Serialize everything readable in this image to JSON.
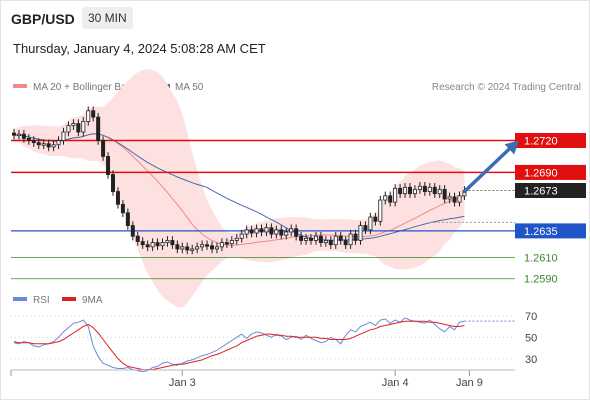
{
  "header": {
    "symbol": "GBP/USD",
    "timeframe": "30 MIN",
    "datetime": "Thursday, January 4, 2024 5:08:28 AM CET"
  },
  "colors": {
    "resistance": "#e01010",
    "support": "#1f55c8",
    "minor_support": "#3a8a2a",
    "bollinger_fill": "#fde0e0",
    "ma20": "#f08a8a",
    "ma50": "#4a6aa8",
    "candle_up": "#ffffff",
    "candle_down": "#222222",
    "arrow": "#3a6db4",
    "rsi": "#6a8ad8",
    "rsi_ma": "#e02020",
    "current_price_bg": "#222222"
  },
  "chart_data": [
    {
      "type": "candlestick",
      "legend": [
        {
          "label": "MA 20 + Bollinger Bands",
          "color": "#f08a8a"
        },
        {
          "label": "MA 50",
          "color": "#4a6aa8"
        }
      ],
      "credit": "Research © 2024 Trading Central",
      "x_tick_labels": [
        {
          "label": "Jan 3",
          "index": 34
        },
        {
          "label": "Jan 4",
          "index": 77
        },
        {
          "label": "Jan 9",
          "index": 92
        }
      ],
      "ylim": [
        1.257,
        1.276
      ],
      "levels": [
        {
          "value": 1.272,
          "label": "1.2720",
          "kind": "resistance"
        },
        {
          "value": 1.269,
          "label": "1.2690",
          "kind": "resistance"
        },
        {
          "value": 1.2673,
          "label": "1.2673",
          "kind": "current"
        },
        {
          "value": 1.2635,
          "label": "1.2635",
          "kind": "support"
        },
        {
          "value": 1.261,
          "label": "1.2610",
          "kind": "minor"
        },
        {
          "value": 1.259,
          "label": "1.2590",
          "kind": "minor"
        }
      ],
      "forecast_arrow": {
        "from_index": 91,
        "from_price": 1.2672,
        "to_index": 102,
        "to_price": 1.272
      },
      "closes": [
        1.2725,
        1.2726,
        1.2722,
        1.272,
        1.2718,
        1.2716,
        1.2717,
        1.2714,
        1.2716,
        1.272,
        1.2728,
        1.2734,
        1.2736,
        1.2728,
        1.2738,
        1.2748,
        1.2742,
        1.272,
        1.2705,
        1.2688,
        1.2672,
        1.266,
        1.2652,
        1.264,
        1.263,
        1.2625,
        1.2622,
        1.262,
        1.2624,
        1.2621,
        1.2624,
        1.2626,
        1.2622,
        1.2618,
        1.262,
        1.2617,
        1.2618,
        1.262,
        1.2622,
        1.2621,
        1.2618,
        1.262,
        1.2624,
        1.2623,
        1.2626,
        1.2628,
        1.2632,
        1.2636,
        1.2633,
        1.2637,
        1.2634,
        1.2638,
        1.2632,
        1.2636,
        1.2631,
        1.2634,
        1.2637,
        1.263,
        1.2626,
        1.2628,
        1.2626,
        1.263,
        1.2624,
        1.2626,
        1.2622,
        1.263,
        1.2626,
        1.2622,
        1.2632,
        1.2626,
        1.264,
        1.2636,
        1.2648,
        1.2644,
        1.2664,
        1.2668,
        1.2662,
        1.2675,
        1.267,
        1.2676,
        1.267,
        1.2674,
        1.2677,
        1.2672,
        1.2676,
        1.267,
        1.2674,
        1.2665,
        1.2667,
        1.2662,
        1.2668,
        1.2673
      ]
    },
    {
      "type": "line",
      "legend": [
        {
          "label": "RSI",
          "color": "#6a8ad8"
        },
        {
          "label": "9MA",
          "color": "#e02020"
        }
      ],
      "ylim": [
        15,
        80
      ],
      "y_ticks": [
        70,
        50,
        30
      ],
      "series": [
        {
          "name": "RSI",
          "values": [
            45,
            44,
            46,
            45,
            42,
            41,
            43,
            44,
            46,
            50,
            55,
            59,
            63,
            64,
            66,
            60,
            42,
            32,
            26,
            24,
            22,
            21,
            21,
            22,
            20,
            19,
            18,
            19,
            22,
            23,
            26,
            27,
            25,
            24,
            26,
            28,
            29,
            31,
            33,
            34,
            36,
            38,
            41,
            44,
            47,
            50,
            53,
            49,
            53,
            55,
            54,
            52,
            50,
            53,
            51,
            48,
            50,
            51,
            48,
            52,
            49,
            47,
            45,
            46,
            50,
            48,
            44,
            52,
            57,
            55,
            60,
            62,
            64,
            61,
            66,
            67,
            63,
            66,
            64,
            68,
            66,
            65,
            64,
            63,
            66,
            62,
            58,
            55,
            60,
            57,
            64,
            65
          ]
        },
        {
          "name": "9MA",
          "values": [
            46,
            45,
            45,
            45,
            44,
            44,
            44,
            44,
            45,
            46,
            48,
            51,
            54,
            57,
            60,
            62,
            59,
            54,
            48,
            42,
            36,
            30,
            26,
            23,
            22,
            21,
            20,
            20,
            20,
            21,
            22,
            23,
            24,
            25,
            25,
            26,
            27,
            28,
            29,
            31,
            33,
            34,
            36,
            38,
            40,
            42,
            45,
            47,
            49,
            51,
            52,
            53,
            53,
            52,
            52,
            51,
            51,
            50,
            50,
            50,
            50,
            50,
            49,
            49,
            48,
            48,
            48,
            48,
            49,
            51,
            53,
            55,
            57,
            58,
            60,
            61,
            62,
            63,
            64,
            65,
            65,
            65,
            65,
            65,
            64,
            64,
            63,
            62,
            61,
            60,
            60,
            61
          ]
        }
      ],
      "current_dotted": 65
    }
  ]
}
